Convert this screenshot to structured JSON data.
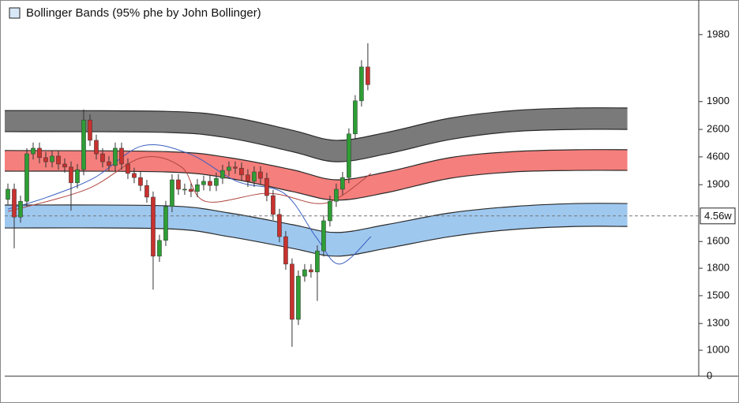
{
  "chart_data": {
    "type": "candlestick",
    "title": "Bollinger Bands (95% phe by John Bollinger)",
    "xlim": [
      -0.5,
      109.4
    ],
    "ylim": [
      0,
      100
    ],
    "yticks": [
      {
        "value": 90.8,
        "label": "1980"
      },
      {
        "value": 73.0,
        "label": "1900"
      },
      {
        "value": 65.6,
        "label": "2600"
      },
      {
        "value": 58.3,
        "label": "4600"
      },
      {
        "value": 50.9,
        "label": "1900"
      },
      {
        "value": 35.8,
        "label": "1600"
      },
      {
        "value": 28.7,
        "label": "1800"
      },
      {
        "value": 21.4,
        "label": "1500"
      },
      {
        "value": 14.0,
        "label": "1300"
      },
      {
        "value": 6.9,
        "label": "1000"
      },
      0
    ],
    "price_marker": {
      "value": 42.6,
      "label": "4.56w"
    },
    "up_color": "#2e9e35",
    "down_color": "#c8322f",
    "open": [
      47.0,
      49.7,
      42.3,
      46.5,
      59.1,
      60.6,
      58.1,
      57.0,
      58.5,
      56.4,
      55.6,
      51.4,
      54.9,
      68.1,
      62.7,
      59.1,
      57.0,
      56.0,
      60.6,
      56.4,
      53.9,
      52.8,
      50.7,
      47.6,
      31.9,
      36.1,
      45.1,
      52.2,
      49.7,
      49.7,
      49.1,
      50.9,
      51.8,
      50.7,
      52.6,
      54.7,
      55.6,
      55.3,
      53.5,
      51.8,
      54.3,
      52.6,
      48.0,
      43.0,
      37.1,
      29.8,
      15.1,
      26.6,
      28.3,
      27.7,
      33.3,
      41.3,
      46.5,
      49.7,
      52.8,
      64.4,
      73.2,
      82.2
    ],
    "high": [
      51.2,
      51.2,
      48.0,
      60.6,
      62.1,
      62.1,
      59.6,
      60.0,
      60.0,
      57.9,
      57.1,
      56.4,
      70.9,
      69.6,
      64.2,
      60.6,
      58.5,
      62.1,
      62.1,
      57.9,
      55.4,
      54.3,
      52.2,
      49.1,
      37.6,
      46.6,
      53.7,
      53.7,
      51.2,
      51.2,
      52.4,
      53.3,
      53.3,
      54.1,
      56.2,
      57.1,
      57.1,
      56.8,
      55.0,
      55.8,
      55.8,
      54.1,
      49.5,
      44.5,
      38.6,
      31.3,
      28.1,
      29.8,
      29.8,
      34.8,
      42.8,
      48.0,
      51.2,
      54.3,
      65.9,
      74.7,
      84.0,
      88.5
    ],
    "low": [
      45.5,
      34.0,
      40.8,
      45.0,
      57.6,
      56.6,
      55.5,
      55.5,
      54.9,
      54.1,
      44.0,
      49.9,
      53.4,
      61.2,
      57.6,
      55.5,
      54.5,
      54.5,
      54.9,
      52.4,
      51.3,
      49.2,
      46.1,
      23.0,
      30.4,
      34.6,
      43.6,
      48.2,
      48.2,
      47.6,
      47.6,
      49.4,
      49.2,
      49.2,
      51.1,
      53.2,
      53.8,
      52.0,
      50.3,
      50.3,
      51.1,
      46.5,
      41.5,
      35.6,
      28.3,
      7.8,
      13.6,
      25.1,
      26.2,
      20.0,
      31.8,
      39.8,
      45.0,
      48.2,
      51.3,
      62.9,
      71.7,
      76.0
    ],
    "close": [
      49.7,
      42.3,
      46.5,
      59.1,
      60.6,
      58.1,
      57.0,
      58.5,
      56.4,
      55.6,
      51.4,
      54.9,
      68.1,
      62.7,
      59.1,
      57.0,
      56.0,
      60.6,
      56.4,
      53.9,
      52.8,
      50.7,
      47.6,
      31.9,
      36.1,
      45.1,
      52.2,
      49.7,
      49.7,
      49.1,
      50.9,
      51.8,
      50.7,
      52.6,
      54.7,
      55.6,
      55.3,
      53.5,
      51.8,
      54.3,
      52.6,
      48.0,
      43.0,
      37.1,
      29.8,
      15.1,
      26.6,
      28.3,
      27.7,
      33.3,
      41.3,
      46.5,
      49.7,
      52.8,
      64.4,
      73.2,
      82.2,
      77.5
    ],
    "bands": [
      {
        "color": "#7a7a7a",
        "x": [
          -0.5,
          25,
          35,
          45,
          52,
          60,
          70,
          80,
          90,
          98.1
        ],
        "upper": [
          70.6,
          70.4,
          69.0,
          65.4,
          62.7,
          64.8,
          68.6,
          70.6,
          71.3,
          71.3
        ],
        "lower": [
          65.0,
          64.8,
          63.3,
          59.7,
          57.0,
          59.1,
          62.9,
          65.0,
          65.6,
          65.6
        ]
      },
      {
        "color": "#f47f7c",
        "x": [
          -0.5,
          25,
          35,
          45,
          52,
          60,
          70,
          80,
          90,
          98.1
        ],
        "upper": [
          60.0,
          59.7,
          58.1,
          54.9,
          52.2,
          54.3,
          58.1,
          59.7,
          60.2,
          60.2
        ],
        "lower": [
          54.5,
          54.3,
          52.6,
          49.1,
          46.8,
          48.8,
          52.6,
          54.3,
          54.7,
          54.7
        ]
      },
      {
        "color": "#9fc8ef",
        "x": [
          -0.5,
          25,
          35,
          45,
          52,
          60,
          70,
          80,
          90,
          98.1
        ],
        "upper": [
          45.5,
          45.3,
          43.4,
          40.3,
          38.2,
          40.3,
          43.4,
          45.1,
          45.9,
          45.9
        ],
        "lower": [
          39.4,
          39.2,
          37.1,
          34.0,
          31.9,
          34.0,
          37.1,
          39.0,
          39.8,
          39.8
        ]
      }
    ],
    "lines": [
      {
        "color": "#3b5fc0",
        "x": [
          0,
          6.25,
          13.75,
          21.25,
          28.75,
          36.25,
          43.75,
          48.75,
          52.5,
          57.5
        ],
        "values": [
          44.4,
          47.6,
          52.8,
          61.2,
          59.1,
          51.8,
          48.6,
          37.1,
          29.8,
          37.1
        ]
      },
      {
        "color": "#b0453f",
        "x": [
          0,
          12.5,
          21.25,
          27.5,
          31.25,
          41.25,
          48.75,
          52.5,
          57.5
        ],
        "values": [
          43.8,
          49.7,
          58.1,
          55.6,
          46.5,
          48.6,
          45.9,
          47.6,
          53.9
        ]
      }
    ]
  }
}
